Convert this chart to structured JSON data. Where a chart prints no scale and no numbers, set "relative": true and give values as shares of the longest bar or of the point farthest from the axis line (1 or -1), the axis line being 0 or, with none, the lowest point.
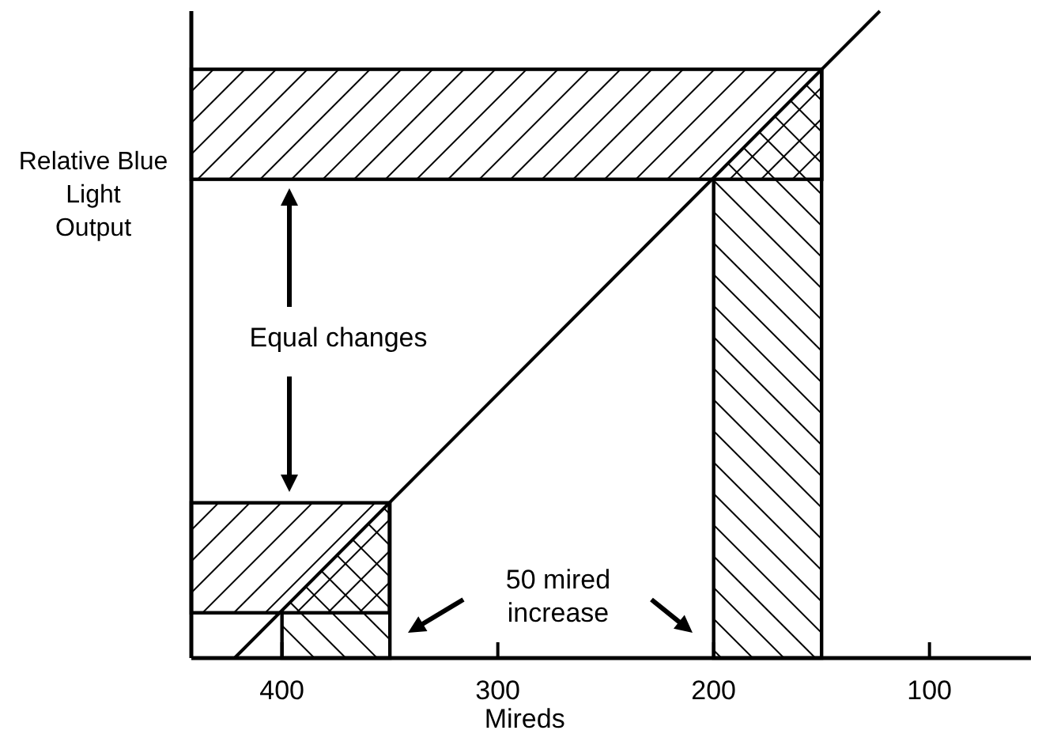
{
  "chart_data": {
    "type": "line",
    "xlabel": "Mireds",
    "ylabel": "Relative Blue Light Output",
    "relative": true,
    "series": [
      {
        "type": "line",
        "color": "#000000",
        "x": [
          422,
          123
        ],
        "values": [
          0,
          1
        ]
      }
    ],
    "xlim": [
      442,
      53
    ],
    "xticks": [
      400,
      300,
      200,
      100
    ],
    "grid": false,
    "legend": false,
    "marker": "none",
    "line_style": "solid",
    "bands": [
      {
        "axis": "x",
        "from": 400,
        "to": 350
      },
      {
        "axis": "x",
        "from": 200,
        "to": 150
      },
      {
        "axis": "y",
        "from": 0.07,
        "to": 0.24
      },
      {
        "axis": "y",
        "from": 0.74,
        "to": 0.91
      }
    ],
    "annotations": [
      "Equal changes",
      "50 mired increase"
    ]
  }
}
